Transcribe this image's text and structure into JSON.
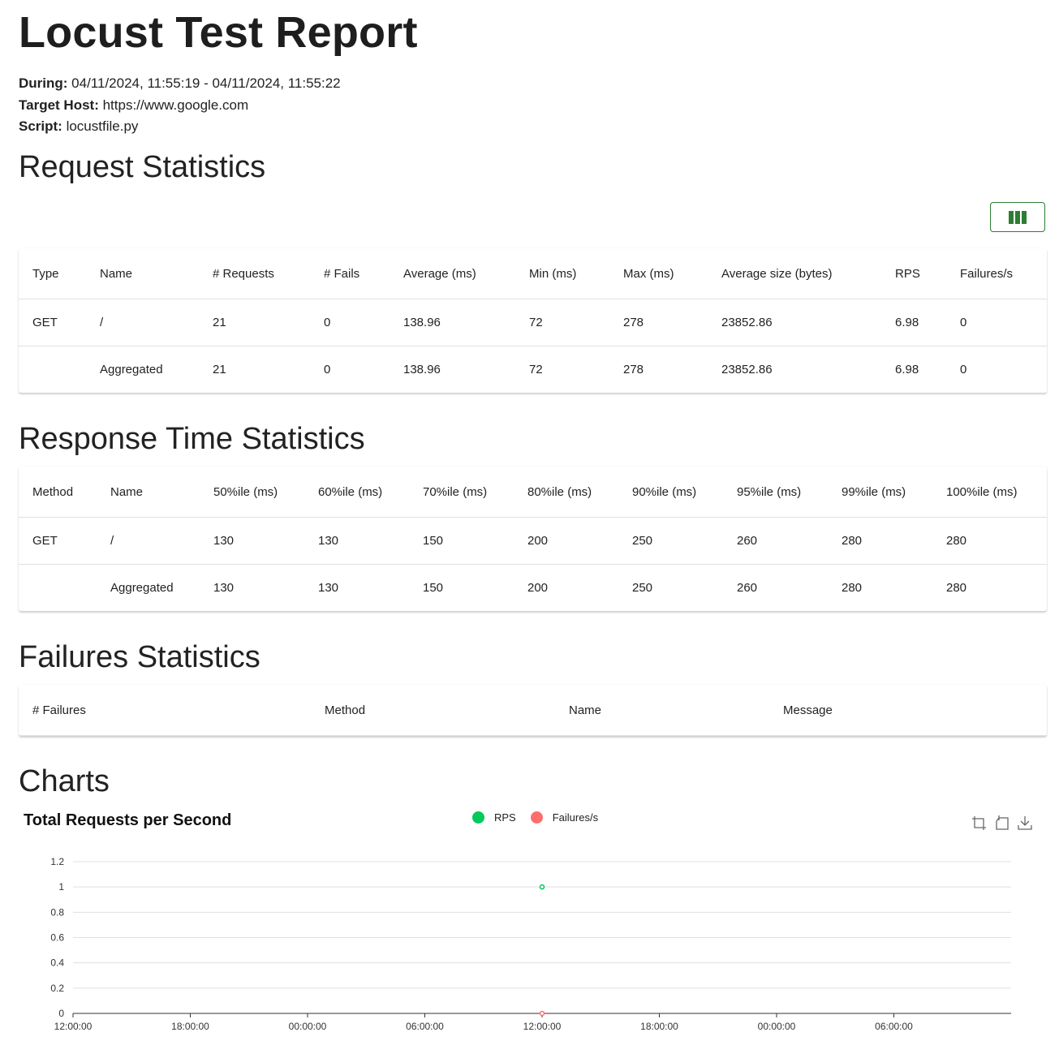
{
  "header": {
    "title": "Locust Test Report",
    "during_label": "During:",
    "during_value": "04/11/2024, 11:55:19 - 04/11/2024, 11:55:22",
    "host_label": "Target Host:",
    "host_value": "https://www.google.com",
    "script_label": "Script:",
    "script_value": "locustfile.py"
  },
  "request_stats": {
    "title": "Request Statistics",
    "columns": [
      "Type",
      "Name",
      "# Requests",
      "# Fails",
      "Average (ms)",
      "Min (ms)",
      "Max (ms)",
      "Average size (bytes)",
      "RPS",
      "Failures/s"
    ],
    "rows": [
      [
        "GET",
        "/",
        "21",
        "0",
        "138.96",
        "72",
        "278",
        "23852.86",
        "6.98",
        "0"
      ],
      [
        "",
        "Aggregated",
        "21",
        "0",
        "138.96",
        "72",
        "278",
        "23852.86",
        "6.98",
        "0"
      ]
    ]
  },
  "response_stats": {
    "title": "Response Time Statistics",
    "columns": [
      "Method",
      "Name",
      "50%ile (ms)",
      "60%ile (ms)",
      "70%ile (ms)",
      "80%ile (ms)",
      "90%ile (ms)",
      "95%ile (ms)",
      "99%ile (ms)",
      "100%ile (ms)"
    ],
    "rows": [
      [
        "GET",
        "/",
        "130",
        "130",
        "150",
        "200",
        "250",
        "260",
        "280",
        "280"
      ],
      [
        "",
        "Aggregated",
        "130",
        "130",
        "150",
        "200",
        "250",
        "260",
        "280",
        "280"
      ]
    ]
  },
  "failure_stats": {
    "title": "Failures Statistics",
    "columns": [
      "# Failures",
      "Method",
      "Name",
      "Message"
    ]
  },
  "charts": {
    "title": "Charts",
    "colors": {
      "rps": "#00ca5a",
      "failures": "#ff6d6d",
      "accent": "#2e7d32"
    }
  },
  "chart_data": {
    "type": "line",
    "title": "Total Requests per Second",
    "legend": [
      "RPS",
      "Failures/s"
    ],
    "y_ticks": [
      "0",
      "0.2",
      "0.4",
      "0.6",
      "0.8",
      "1",
      "1.2"
    ],
    "ylim": [
      0,
      1.2
    ],
    "x_ticks": [
      "12:00:00",
      "18:00:00",
      "00:00:00",
      "06:00:00",
      "12:00:00",
      "18:00:00",
      "00:00:00",
      "06:00:00"
    ],
    "x_hours": [
      0,
      6,
      12,
      18,
      24,
      30,
      36,
      42
    ],
    "xlim_hours": [
      0,
      48
    ],
    "series": [
      {
        "name": "RPS",
        "x_hours": [
          24
        ],
        "values": [
          1
        ]
      },
      {
        "name": "Failures/s",
        "x_hours": [
          24
        ],
        "values": [
          0
        ]
      }
    ]
  }
}
